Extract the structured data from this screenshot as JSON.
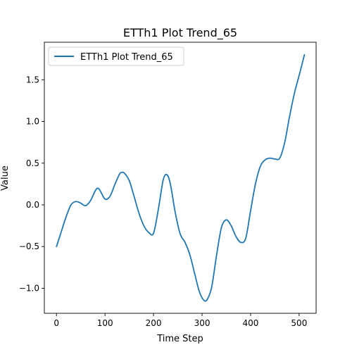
{
  "chart_data": {
    "type": "line",
    "title": "ETTh1 Plot Trend_65",
    "xlabel": "Time Step",
    "ylabel": "Value",
    "xlim": [
      -25,
      535
    ],
    "ylim": [
      -1.3,
      1.95
    ],
    "xticks": [
      0,
      100,
      200,
      300,
      400,
      500
    ],
    "yticks": [
      -1.0,
      -0.5,
      0.0,
      0.5,
      1.0,
      1.5
    ],
    "xtick_labels": [
      "0",
      "100",
      "200",
      "300",
      "400",
      "500"
    ],
    "ytick_labels": [
      "−1.0",
      "−0.5",
      "0.0",
      "0.5",
      "1.0",
      "1.5"
    ],
    "grid": false,
    "legend_position": "upper-left",
    "colors": {
      "series": "#1f77b4",
      "axes": "#000000",
      "background": "#ffffff"
    },
    "series": [
      {
        "name": "ETTh1 Plot Trend_65",
        "x": [
          0,
          10,
          20,
          30,
          40,
          50,
          60,
          70,
          80,
          85,
          90,
          100,
          110,
          120,
          130,
          135,
          140,
          150,
          160,
          170,
          180,
          190,
          200,
          210,
          220,
          228,
          235,
          245,
          255,
          265,
          275,
          285,
          295,
          305,
          312,
          320,
          330,
          340,
          350,
          360,
          370,
          380,
          390,
          400,
          410,
          420,
          430,
          440,
          450,
          460,
          470,
          480,
          490,
          500,
          511
        ],
        "y": [
          -0.5,
          -0.32,
          -0.14,
          0.0,
          0.04,
          0.02,
          -0.01,
          0.05,
          0.17,
          0.2,
          0.17,
          0.07,
          0.1,
          0.24,
          0.37,
          0.39,
          0.38,
          0.29,
          0.1,
          -0.1,
          -0.25,
          -0.33,
          -0.34,
          -0.05,
          0.3,
          0.36,
          0.24,
          -0.1,
          -0.35,
          -0.45,
          -0.6,
          -0.83,
          -1.05,
          -1.15,
          -1.12,
          -0.98,
          -0.6,
          -0.27,
          -0.18,
          -0.25,
          -0.38,
          -0.45,
          -0.4,
          -0.07,
          0.25,
          0.46,
          0.54,
          0.56,
          0.55,
          0.56,
          0.74,
          1.05,
          1.33,
          1.55,
          1.8
        ]
      }
    ]
  }
}
